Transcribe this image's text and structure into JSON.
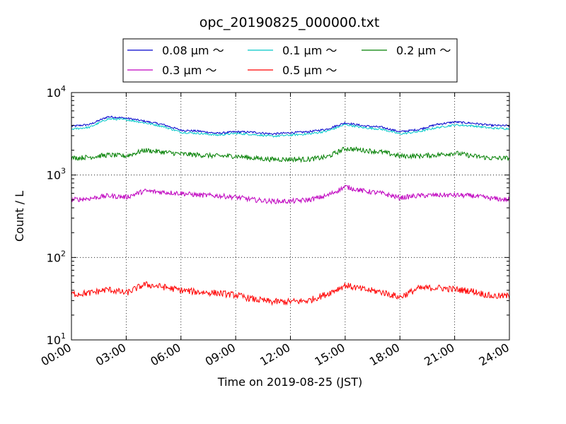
{
  "chart_data": {
    "type": "line",
    "title": "opc_20190825_000000.txt",
    "xlabel": "Time on 2019-08-25 (JST)",
    "ylabel": "Count / L",
    "x_ticks": [
      "00:00",
      "03:00",
      "06:00",
      "09:00",
      "12:00",
      "15:00",
      "18:00",
      "21:00",
      "24:00"
    ],
    "xlim": [
      "2019-08-25 00:00",
      "2019-08-26 00:00"
    ],
    "y_scale": "log",
    "ylim": [
      10,
      10000
    ],
    "y_ticks": [
      {
        "base": "10",
        "exp": "1"
      },
      {
        "base": "10",
        "exp": "2"
      },
      {
        "base": "10",
        "exp": "3"
      },
      {
        "base": "10",
        "exp": "4"
      }
    ],
    "grid": true,
    "legend": {
      "position": "top, outside plot",
      "columns": 3
    },
    "x_hours_sampled": [
      0,
      1,
      2,
      3,
      4,
      5,
      6,
      7,
      8,
      9,
      10,
      11,
      12,
      13,
      14,
      15,
      16,
      17,
      18,
      19,
      20,
      21,
      22,
      23,
      24
    ],
    "series": [
      {
        "name": "0.08 μm ～",
        "color": "#0000cc",
        "values": [
          3900,
          4100,
          5100,
          4900,
          4500,
          4100,
          3500,
          3400,
          3200,
          3350,
          3300,
          3150,
          3250,
          3350,
          3600,
          4300,
          3950,
          3800,
          3350,
          3550,
          4100,
          4400,
          4250,
          4000,
          3950
        ]
      },
      {
        "name": "0.1 μm ～",
        "color": "#00c8c8",
        "values": [
          3600,
          3800,
          4800,
          4700,
          4300,
          3900,
          3300,
          3200,
          3050,
          3200,
          3100,
          2950,
          3050,
          3150,
          3400,
          4100,
          3750,
          3600,
          3150,
          3350,
          3750,
          4050,
          3950,
          3700,
          3650
        ]
      },
      {
        "name": "0.2 μm ～",
        "color": "#007f00",
        "values": [
          1600,
          1650,
          1750,
          1700,
          2000,
          1900,
          1800,
          1750,
          1700,
          1700,
          1600,
          1550,
          1550,
          1550,
          1650,
          2100,
          2000,
          1900,
          1700,
          1700,
          1750,
          1850,
          1700,
          1600,
          1600
        ]
      },
      {
        "name": "0.3 μm ～",
        "color": "#bf00bf",
        "values": [
          500,
          520,
          560,
          540,
          640,
          620,
          600,
          570,
          560,
          540,
          500,
          480,
          480,
          500,
          560,
          720,
          640,
          600,
          530,
          560,
          570,
          570,
          560,
          520,
          500
        ]
      },
      {
        "name": "0.5 μm ～",
        "color": "#ff0000",
        "values": [
          36,
          37,
          41,
          37,
          47,
          44,
          40,
          38,
          37,
          35,
          31,
          29,
          29,
          30,
          36,
          46,
          41,
          38,
          33,
          42,
          43,
          41,
          39,
          34,
          34
        ]
      }
    ]
  }
}
